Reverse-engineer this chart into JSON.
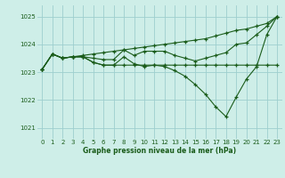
{
  "background_color": "#ceeee8",
  "grid_color": "#9ecece",
  "line_color": "#1a5c1a",
  "xlabel": "Graphe pression niveau de la mer (hPa)",
  "ylim": [
    1020.6,
    1025.4
  ],
  "yticks": [
    1021,
    1022,
    1023,
    1024,
    1025
  ],
  "xlim": [
    -0.5,
    23.5
  ],
  "xticks": [
    0,
    1,
    2,
    3,
    4,
    5,
    6,
    7,
    8,
    9,
    10,
    11,
    12,
    13,
    14,
    15,
    16,
    17,
    18,
    19,
    20,
    21,
    22,
    23
  ],
  "series": [
    [
      1023.1,
      1023.65,
      1023.5,
      1023.55,
      1023.6,
      1023.65,
      1023.7,
      1023.75,
      1023.8,
      1023.85,
      1023.9,
      1023.95,
      1024.0,
      1024.05,
      1024.1,
      1024.15,
      1024.2,
      1024.3,
      1024.4,
      1024.5,
      1024.55,
      1024.65,
      1024.75,
      1025.0
    ],
    [
      1023.1,
      1023.65,
      1023.5,
      1023.55,
      1023.55,
      1023.5,
      1023.45,
      1023.45,
      1023.8,
      1023.6,
      1023.75,
      1023.75,
      1023.75,
      1023.6,
      1023.5,
      1023.4,
      1023.5,
      1023.6,
      1023.7,
      1024.0,
      1024.05,
      1024.35,
      1024.65,
      1025.0
    ],
    [
      1023.1,
      1023.65,
      1023.5,
      1023.55,
      1023.55,
      1023.35,
      1023.25,
      1023.25,
      1023.55,
      1023.3,
      1023.2,
      1023.25,
      1023.2,
      1023.05,
      1022.85,
      1022.55,
      1022.2,
      1021.75,
      1021.4,
      1022.1,
      1022.75,
      1023.2,
      1024.35,
      1025.0
    ],
    [
      1023.1,
      1023.65,
      1023.5,
      1023.55,
      1023.55,
      1023.35,
      1023.25,
      1023.25,
      1023.25,
      1023.25,
      1023.25,
      1023.25,
      1023.25,
      1023.25,
      1023.25,
      1023.25,
      1023.25,
      1023.25,
      1023.25,
      1023.25,
      1023.25,
      1023.25,
      1023.25,
      1023.25
    ]
  ]
}
